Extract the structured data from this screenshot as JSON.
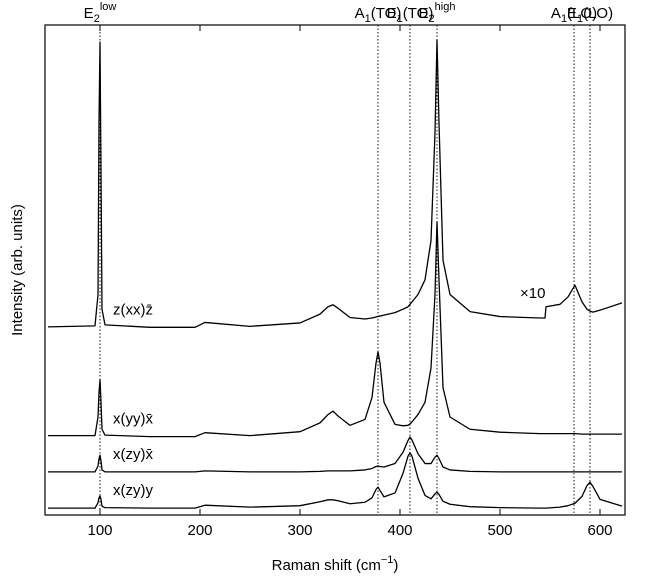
{
  "chart_data": {
    "type": "line",
    "xlabel": {
      "text": "Raman shift (cm",
      "sup": "−1",
      "suffix": ")"
    },
    "ylabel": "Intensity (arb. units)",
    "xlim": [
      45,
      625
    ],
    "ylim": [
      0,
      100
    ],
    "xticks": [
      100,
      200,
      300,
      400,
      500,
      600
    ],
    "annotation": "×10",
    "modes": [
      {
        "x": 100,
        "base": "E",
        "sub": "2",
        "sup": "low"
      },
      {
        "x": 378,
        "base": "A",
        "sub": "1",
        "suffix": "(TO)"
      },
      {
        "x": 410,
        "base": "E",
        "sub": "1",
        "suffix": "(TO)"
      },
      {
        "x": 437,
        "base": "E",
        "sub": "2",
        "sup": "high"
      },
      {
        "x": 574,
        "base": "A",
        "sub": "1",
        "suffix": "(LO)"
      },
      {
        "x": 590,
        "base": "E",
        "sub": "1",
        "suffix": "(LO)"
      }
    ],
    "x": [
      48,
      95,
      98,
      99,
      100,
      101,
      102,
      105,
      150,
      195,
      205,
      250,
      300,
      320,
      328,
      333,
      338,
      350,
      365,
      372,
      376,
      378,
      380,
      384,
      395,
      403,
      408,
      410,
      412,
      418,
      425,
      431,
      435,
      437,
      439,
      443,
      450,
      470,
      500,
      540,
      545,
      546,
      560,
      568,
      575,
      582,
      587,
      590,
      593,
      600,
      622
    ],
    "series": [
      {
        "name": "z(xx)z̄",
        "color": "#000000",
        "values": [
          38.4,
          38.6,
          45,
          80,
          96.5,
          70,
          42,
          38.8,
          38.3,
          38.3,
          39.3,
          38.5,
          39.2,
          41,
          42.5,
          42.9,
          42.2,
          40.3,
          40,
          40.2,
          40.4,
          40.5,
          40.6,
          40.8,
          41.3,
          42,
          42.5,
          43,
          43.5,
          45,
          48,
          56,
          78,
          96.9,
          80,
          52,
          45,
          41.5,
          40.5,
          40.2,
          40.2,
          42.5,
          43,
          44.5,
          46.9,
          43.5,
          42,
          41.6,
          41.4,
          41.8,
          43.3
        ]
      },
      {
        "name": "x(yy)x̄",
        "color": "#000000",
        "values": [
          16.2,
          16.2,
          20,
          25,
          27.6,
          23,
          17.5,
          16.3,
          16,
          16,
          16.8,
          16.2,
          17,
          18.8,
          20.5,
          21.2,
          20.2,
          18.3,
          19.5,
          24,
          31,
          33.3,
          31,
          23,
          18.5,
          18.2,
          18.3,
          18.6,
          19,
          20.5,
          23,
          30,
          45,
          59.8,
          48,
          26,
          20,
          17.5,
          16.9,
          16.6,
          16.6,
          16.6,
          16.6,
          16.6,
          16.6,
          16.5,
          16.5,
          16.5,
          16.5,
          16.5,
          16.5
        ]
      },
      {
        "name": "x(zy)x̄",
        "color": "#000000",
        "values": [
          8.8,
          8.8,
          10,
          11.5,
          12.2,
          11,
          9.2,
          8.8,
          8.8,
          8.8,
          9,
          8.8,
          8.8,
          8.9,
          9,
          9,
          9,
          9,
          9.2,
          9.5,
          9.9,
          10,
          9.9,
          9.8,
          10.5,
          12.8,
          15.2,
          15.9,
          15.3,
          12.5,
          10.5,
          10.5,
          11.8,
          12.2,
          11.5,
          9.8,
          9.2,
          8.9,
          8.8,
          8.8,
          8.8,
          8.8,
          8.8,
          8.8,
          8.8,
          8.8,
          8.8,
          8.8,
          8.8,
          8.8,
          8.8
        ]
      },
      {
        "name": "x(zy)y",
        "color": "#000000",
        "values": [
          1.4,
          1.4,
          2.5,
          3.5,
          3.9,
          3.2,
          1.8,
          1.5,
          1.4,
          1.4,
          2,
          1.6,
          1.9,
          2.7,
          3.1,
          3.1,
          2.9,
          2.3,
          2.6,
          3.5,
          5.2,
          5.7,
          5,
          3.7,
          4.5,
          8.5,
          12,
          12.7,
          12,
          7.5,
          4,
          3.3,
          4.3,
          4.7,
          4.2,
          2.8,
          2.2,
          1.7,
          1.5,
          1.4,
          1.4,
          1.4,
          1.6,
          1.9,
          2.4,
          3.8,
          6,
          6.7,
          5.8,
          3.2,
          1.8
        ]
      }
    ]
  }
}
